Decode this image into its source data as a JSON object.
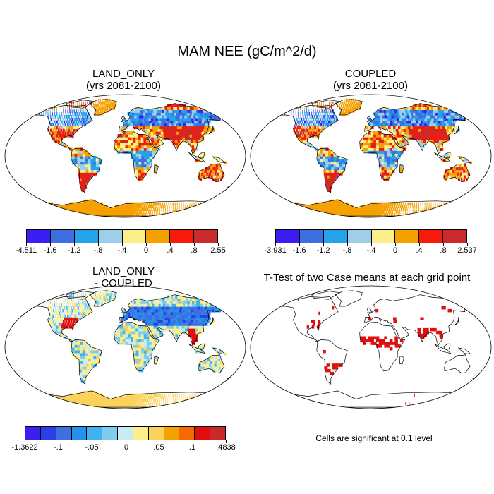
{
  "figure": {
    "title": "MAM NEE (gC/m^2/d)",
    "note": "Cells are significant at 0.1 level"
  },
  "panels": [
    {
      "id": "land-only",
      "title_line1": "LAND_ONLY",
      "title_line2": "(yrs 2081-2100)",
      "colorbar": {
        "colors": [
          "#3b1ef2",
          "#3d6fe0",
          "#25a3ea",
          "#9ecfe8",
          "#fbef8a",
          "#f5a100",
          "#f51a0a",
          "#cc2a2a"
        ],
        "labels": [
          "-4.511",
          "-1.6",
          "-1.2",
          "-.8",
          "-.4",
          "0",
          ".4",
          ".8",
          "2.55"
        ]
      }
    },
    {
      "id": "coupled",
      "title_line1": "COUPLED",
      "title_line2": "(yrs 2081-2100)",
      "colorbar": {
        "colors": [
          "#3b1ef2",
          "#3d6fe0",
          "#25a3ea",
          "#9ecfe8",
          "#fbef8a",
          "#f5a100",
          "#f51a0a",
          "#cc2a2a"
        ],
        "labels": [
          "-3.931",
          "-1.6",
          "-1.2",
          "-.8",
          "-.4",
          "0",
          ".4",
          ".8",
          "2.537"
        ]
      }
    },
    {
      "id": "difference",
      "title_line1": "LAND_ONLY",
      "title_line2": "- COUPLED",
      "colorbar": {
        "colors": [
          "#3b1ef2",
          "#2a3fe8",
          "#3d6fe0",
          "#2591ea",
          "#3fb2f0",
          "#7ecdef",
          "#c8ecf6",
          "#fbef8a",
          "#fbd25a",
          "#f5a100",
          "#f56a00",
          "#e10e0e",
          "#c82a2a"
        ],
        "labels": [
          "-1.3622",
          "-.1",
          "-.05",
          ".0",
          ".05",
          ".1",
          ".4838"
        ]
      }
    },
    {
      "id": "ttest",
      "title_line1": "T-Test of two Case means at each grid point",
      "significance_color": "#e01010"
    }
  ]
}
